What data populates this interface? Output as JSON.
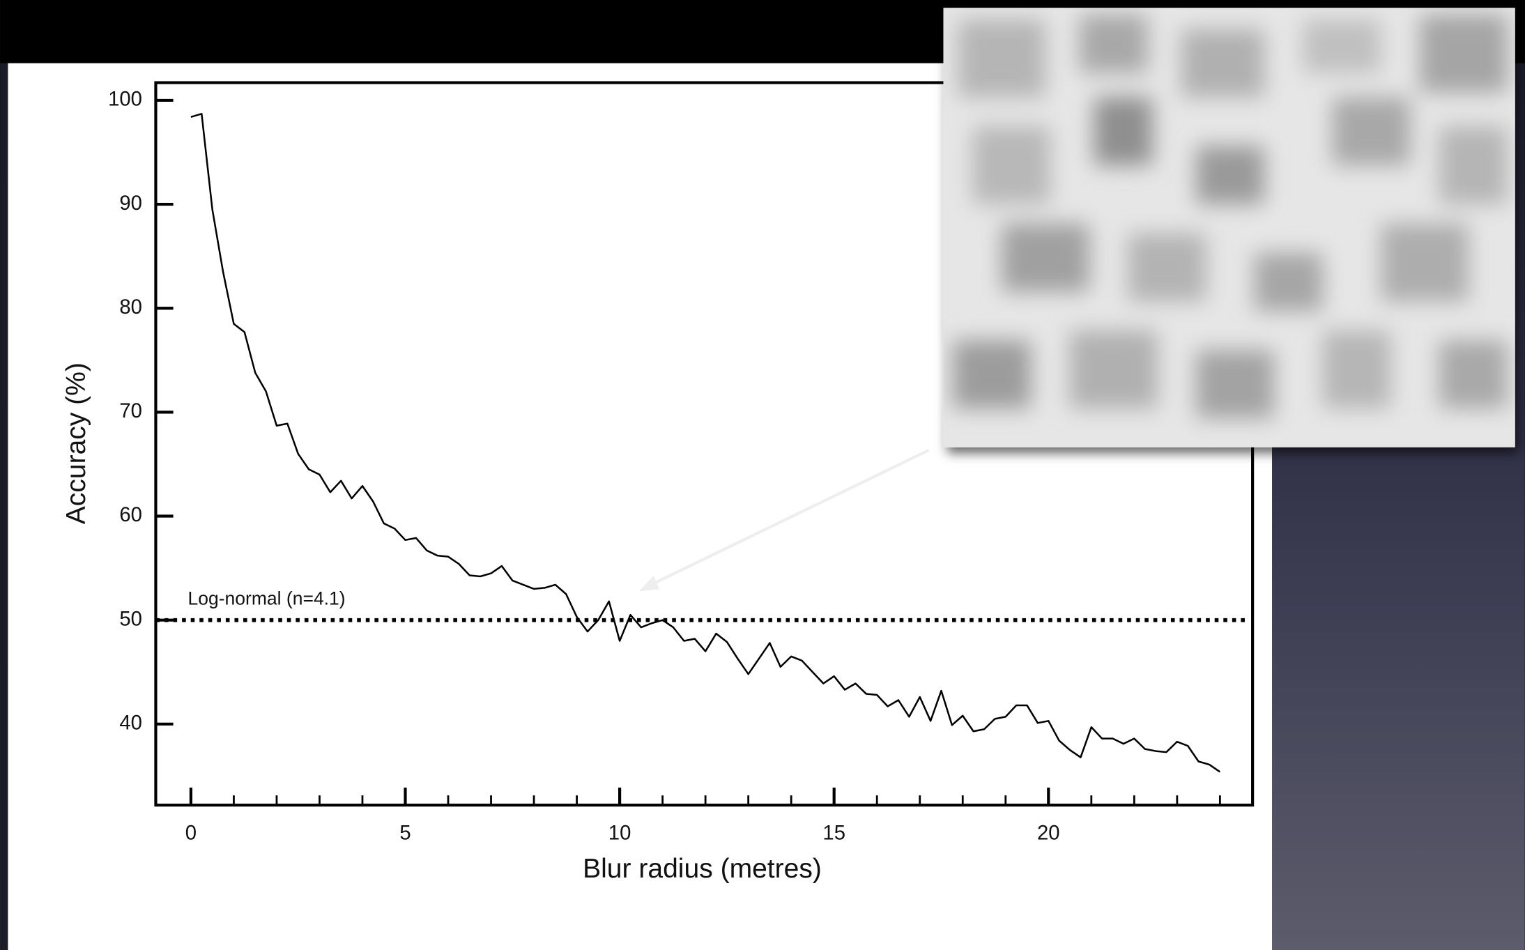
{
  "chart_data": {
    "type": "line",
    "x_label": "Blur radius (metres)",
    "y_label": "Accuracy (%)",
    "x": [
      0,
      0.25,
      0.5,
      0.75,
      1,
      1.25,
      1.5,
      1.75,
      2,
      2.25,
      2.5,
      2.75,
      3,
      3.25,
      3.5,
      3.75,
      4,
      4.25,
      4.5,
      4.75,
      5,
      5.25,
      5.5,
      5.75,
      6,
      6.25,
      6.5,
      6.75,
      7,
      7.25,
      7.5,
      7.75,
      8,
      8.25,
      8.5,
      8.75,
      9,
      9.25,
      9.5,
      9.75,
      10,
      10.25,
      10.5,
      10.75,
      11,
      11.25,
      11.5,
      11.75,
      12,
      12.25,
      12.5,
      12.75,
      13,
      13.25,
      13.5,
      13.75,
      14,
      14.25,
      14.5,
      14.75,
      15,
      15.25,
      15.5,
      15.75,
      16,
      16.25,
      16.5,
      16.75,
      17,
      17.25,
      17.5,
      17.75,
      18,
      18.25,
      18.5,
      18.75,
      19,
      19.25,
      19.5,
      19.75,
      20,
      20.25,
      20.5,
      20.75,
      21,
      21.25,
      21.5,
      21.75,
      22,
      22.25,
      22.5,
      22.75,
      23,
      23.25,
      23.5,
      23.75,
      24
    ],
    "values": [
      98.4,
      98.7,
      89.5,
      83.5,
      78.5,
      77.7,
      73.8,
      72,
      68.7,
      68.9,
      66,
      64.5,
      64,
      62.3,
      63.4,
      61.7,
      62.9,
      61.4,
      59.3,
      58.8,
      57.7,
      57.9,
      56.7,
      56.2,
      56.1,
      55.4,
      54.3,
      54.2,
      54.5,
      55.2,
      53.8,
      53.4,
      53,
      53.1,
      53.4,
      52.5,
      50.3,
      48.9,
      50,
      51.8,
      48,
      50.5,
      49.3,
      49.7,
      50,
      49.3,
      48,
      48.2,
      47,
      48.7,
      47.9,
      46.3,
      44.8,
      46.3,
      47.8,
      45.5,
      46.5,
      46.1,
      45,
      43.9,
      44.6,
      43.3,
      43.9,
      42.9,
      42.8,
      41.7,
      42.3,
      40.7,
      42.6,
      40.3,
      43.2,
      39.9,
      40.8,
      39.3,
      39.5,
      40.5,
      40.7,
      41.8,
      41.8,
      40.1,
      40.3,
      38.4,
      37.5,
      36.8,
      39.7,
      38.6,
      38.6,
      38.1,
      38.6,
      37.6,
      37.4,
      37.3,
      38.3,
      37.9,
      36.4,
      36.1,
      35.4
    ],
    "color": "#000000",
    "xlim": [
      -0.82,
      24.76
    ],
    "ylim": [
      32.2,
      101.7
    ],
    "xticks": [
      0,
      5,
      10,
      15,
      20
    ],
    "x_minor_ticks": [
      1,
      2,
      3,
      4,
      6,
      7,
      8,
      9,
      11,
      12,
      13,
      14,
      16,
      17,
      18,
      19,
      21,
      22,
      23,
      24
    ],
    "yticks": [
      40,
      50,
      60,
      70,
      80,
      90,
      100
    ],
    "reference_line": {
      "value": 50,
      "label": "Log-normal (n=4.1)",
      "style": "dotted"
    }
  }
}
